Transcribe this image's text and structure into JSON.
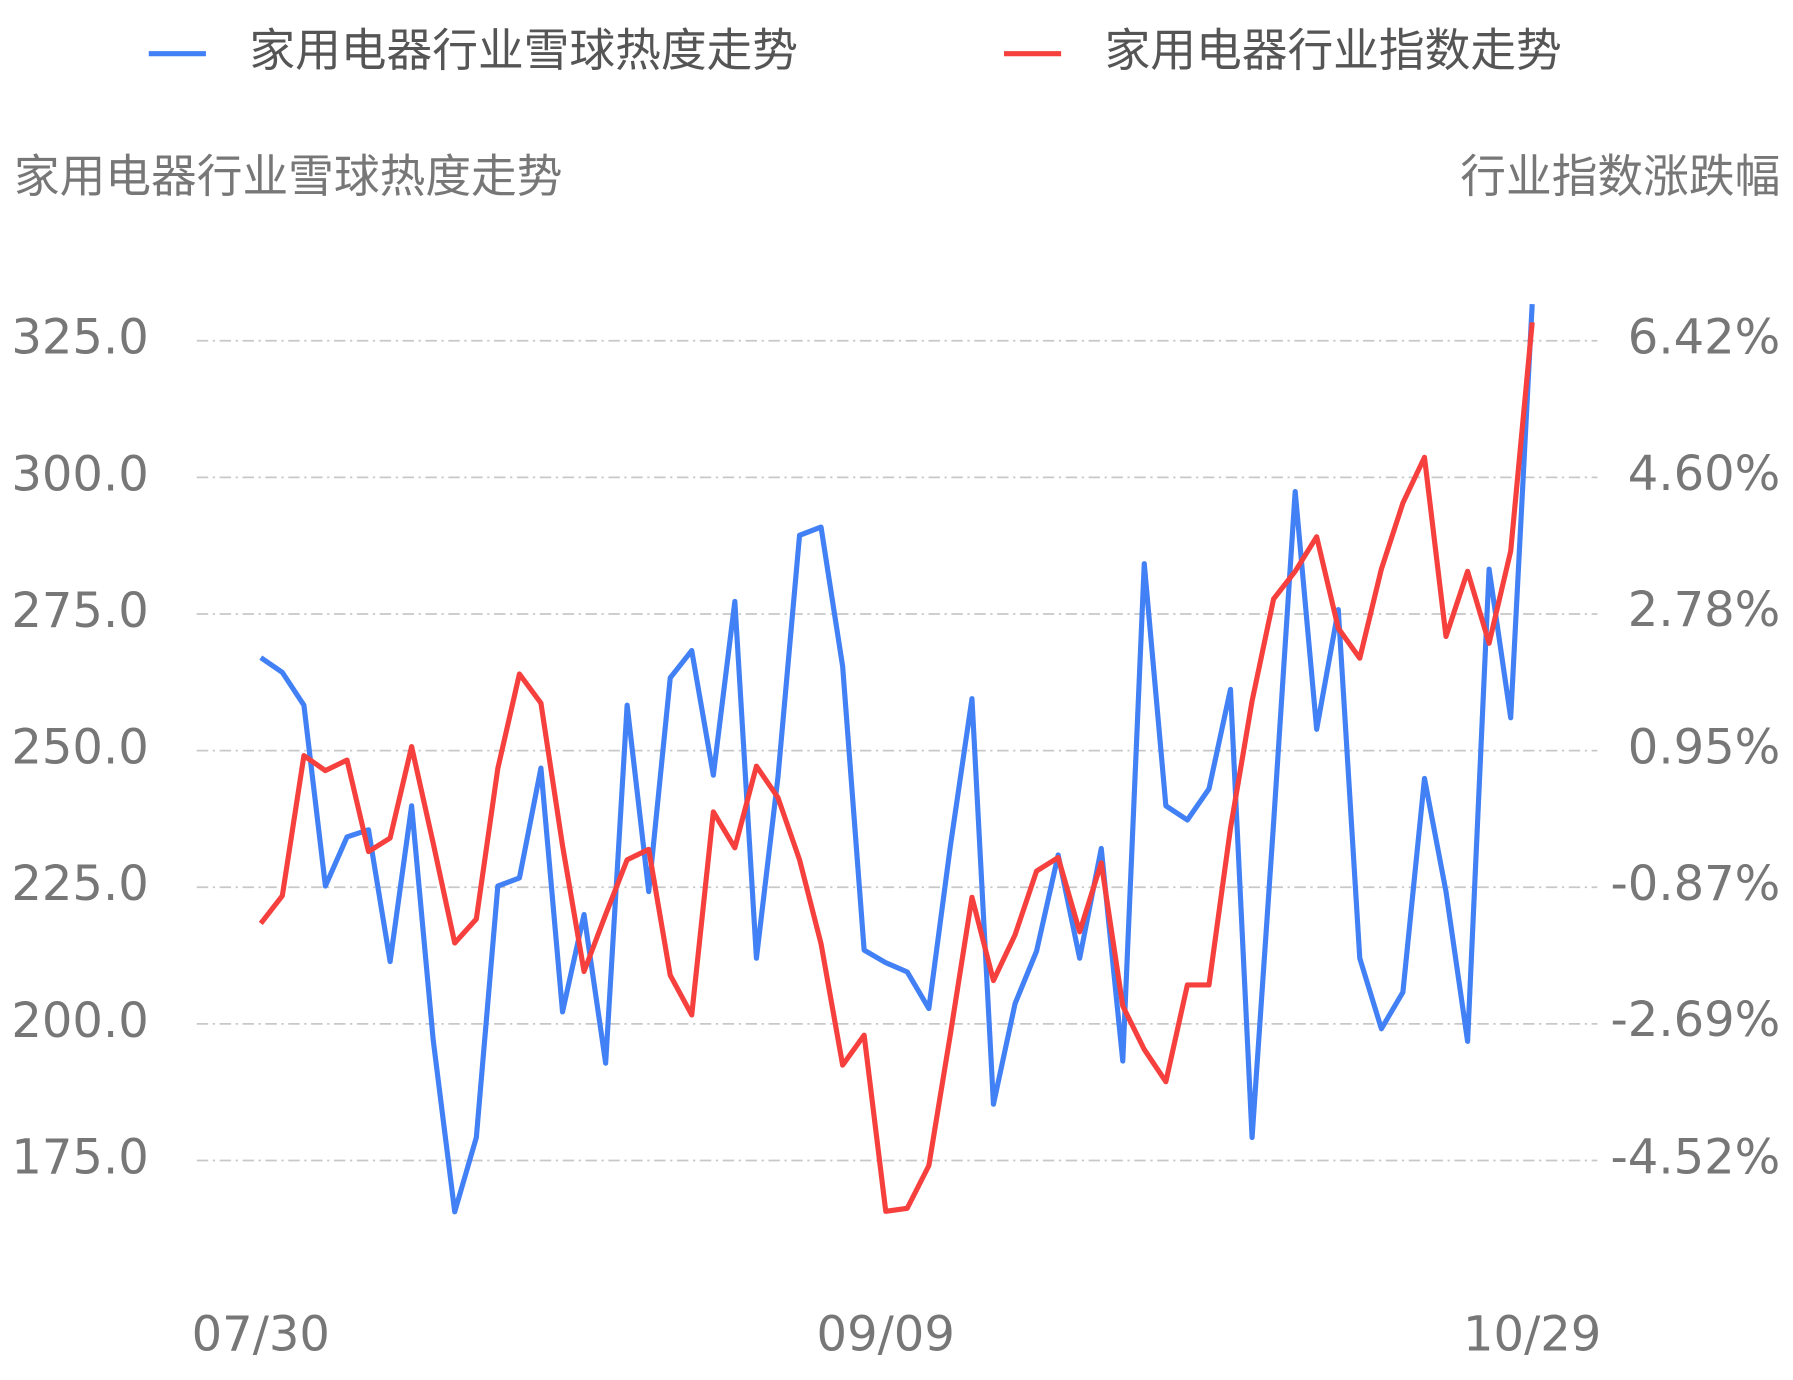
{
  "chart_data": {
    "type": "line",
    "y_label": "家用电器行业雪球热度走势",
    "y2_label": "行业指数涨跌幅",
    "categories": [
      "07/30",
      null,
      null,
      null,
      null,
      null,
      null,
      null,
      null,
      null,
      null,
      null,
      null,
      null,
      null,
      null,
      null,
      null,
      null,
      null,
      null,
      null,
      null,
      null,
      null,
      null,
      null,
      null,
      null,
      "09/09",
      null,
      null,
      null,
      null,
      null,
      null,
      null,
      null,
      null,
      null,
      null,
      null,
      null,
      null,
      null,
      null,
      null,
      null,
      null,
      null,
      null,
      null,
      null,
      null,
      null,
      null,
      null,
      null,
      null,
      "10/29"
    ],
    "series": [
      {
        "name": "家用电器行业雪球热度走势",
        "color": "#4280f5",
        "axis": "y",
        "values": [
          267.0,
          264.3,
          258.3,
          225.2,
          234.2,
          235.5,
          211.4,
          239.9,
          197.0,
          165.6,
          179.2,
          225.2,
          226.7,
          246.8,
          202.2,
          220.0,
          192.8,
          258.3,
          224.2,
          263.3,
          268.3,
          245.5,
          277.3,
          212.0,
          245.1,
          289.4,
          290.9,
          265.4,
          213.5,
          211.2,
          209.5,
          202.8,
          232.5,
          259.5,
          185.3,
          203.7,
          213.3,
          230.9,
          212.0,
          232.1,
          193.2,
          284.2,
          239.9,
          237.3,
          243.0,
          261.2,
          179.2,
          236.7,
          297.4,
          253.9,
          275.8,
          212.0,
          199.1,
          205.8,
          244.9,
          224.2,
          196.8,
          283.2,
          256.0,
          331.7
        ]
      },
      {
        "name": "家用电器行业指数走势",
        "color": "#f5403e",
        "axis": "y2",
        "values": [
          -1.36,
          -0.99,
          0.88,
          0.68,
          0.82,
          -0.4,
          -0.22,
          1.0,
          -0.29,
          -1.62,
          -1.3,
          0.71,
          1.97,
          1.58,
          -0.32,
          -2.0,
          -1.24,
          -0.51,
          -0.37,
          -2.05,
          -2.58,
          0.13,
          -0.35,
          0.74,
          0.32,
          -0.51,
          -1.63,
          -3.25,
          -2.85,
          -5.2,
          -5.16,
          -4.59,
          -2.84,
          -1.01,
          -2.12,
          -1.51,
          -0.66,
          -0.48,
          -1.47,
          -0.55,
          -2.46,
          -3.04,
          -3.47,
          -2.18,
          -2.18,
          -0.09,
          1.61,
          2.97,
          3.34,
          3.8,
          2.58,
          2.18,
          3.37,
          4.25,
          4.86,
          2.47,
          3.34,
          2.38,
          3.61,
          6.66
        ]
      }
    ],
    "ylim": [
      155,
      340
    ],
    "yticks": [
      {
        "value": 175,
        "label": "175.0"
      },
      {
        "value": 200,
        "label": "200.0"
      },
      {
        "value": 225,
        "label": "225.0"
      },
      {
        "value": 250,
        "label": "250.0"
      },
      {
        "value": 275,
        "label": "275.0"
      },
      {
        "value": 300,
        "label": "300.0"
      },
      {
        "value": 325,
        "label": "325.0"
      }
    ],
    "y2lim": [
      -5.98,
      7.51
    ],
    "y2ticks": [
      {
        "value": -4.52,
        "label": "-4.52%"
      },
      {
        "value": -2.69,
        "label": "-2.69%"
      },
      {
        "value": -0.87,
        "label": "-0.87%"
      },
      {
        "value": 0.95,
        "label": "0.95%"
      },
      {
        "value": 2.78,
        "label": "2.78%"
      },
      {
        "value": 4.6,
        "label": "4.60%"
      },
      {
        "value": 6.42,
        "label": "6.42%"
      }
    ],
    "grid": true,
    "legend": "top"
  }
}
